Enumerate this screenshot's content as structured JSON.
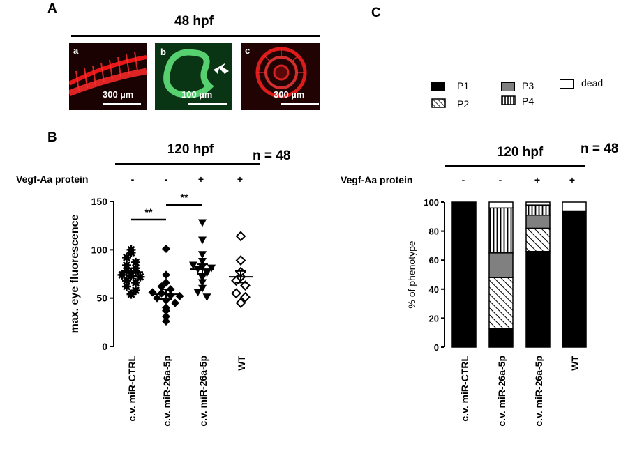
{
  "panel_a": {
    "letter": "A",
    "header": "48 hpf",
    "images": [
      {
        "label": "a",
        "scale": "300 µm",
        "description_icon": "zebrafish-trunk-vessels-image"
      },
      {
        "label": "b",
        "scale": "100 µm",
        "description_icon": "vessel-loop-image"
      },
      {
        "label": "c",
        "scale": "300 µm",
        "description_icon": "eye-vasculature-image"
      }
    ]
  },
  "panel_b": {
    "letter": "B",
    "header": "120 hpf",
    "n_label": "n = 48",
    "row_label": "Vegf-Aa protein",
    "signs": [
      "-",
      "-",
      "+",
      "+"
    ]
  },
  "panel_c": {
    "letter": "C",
    "header": "120 hpf",
    "n_label": "n = 48",
    "row_label": "Vegf-Aa protein",
    "signs": [
      "-",
      "-",
      "+",
      "+"
    ],
    "legend": [
      "P1",
      "P3",
      "dead",
      "P2",
      "P4"
    ]
  },
  "chart_data": [
    {
      "type": "scatter",
      "title": "",
      "ylabel": "max. eye fluorescence",
      "xlabel": "",
      "ylim": [
        0,
        150
      ],
      "yticks": [
        "0",
        "50",
        "100",
        "150"
      ],
      "categories": [
        "c.v. miR-CTRL",
        "c.v. miR-26a-5p",
        "c.v. miR-26a-5p",
        "WT"
      ],
      "series": [
        {
          "marker": "asterisk",
          "values": [
            100,
            97,
            92,
            87,
            84,
            81,
            78,
            78,
            74,
            73,
            72,
            68,
            66,
            62,
            58,
            54
          ]
        },
        {
          "marker": "diamond-filled",
          "values": [
            101,
            74,
            66,
            62,
            59,
            56,
            55,
            53,
            52,
            50,
            48,
            45,
            40,
            37,
            31,
            26
          ]
        },
        {
          "marker": "triangle-down",
          "values": [
            128,
            110,
            95,
            88,
            84,
            82,
            81,
            80,
            76,
            71,
            66,
            60,
            56,
            51
          ]
        },
        {
          "marker": "diamond-open",
          "values": [
            114,
            89,
            77,
            72,
            68,
            63,
            55,
            51,
            45
          ]
        }
      ],
      "means": [
        77,
        54,
        80,
        72
      ],
      "sem": [
        4,
        5,
        5,
        6
      ],
      "significance": [
        {
          "between": [
            0,
            1
          ],
          "label": "**"
        },
        {
          "between": [
            1,
            2
          ],
          "label": "**"
        }
      ]
    },
    {
      "type": "bar",
      "stacked": true,
      "title": "",
      "ylabel": "% of phenotype",
      "xlabel": "",
      "ylim": [
        0,
        100
      ],
      "yticks": [
        "0",
        "20",
        "40",
        "60",
        "80",
        "100"
      ],
      "categories": [
        "c.v. miR-CTRL",
        "c.v. miR-26a-5p",
        "c.v. miR-26a-5p",
        "WT"
      ],
      "series": [
        {
          "name": "P1",
          "fill": "black",
          "values": [
            100,
            13,
            66,
            94
          ]
        },
        {
          "name": "P2",
          "fill": "diagonal-hatch",
          "values": [
            0,
            35,
            16,
            0
          ]
        },
        {
          "name": "P3",
          "fill": "gray",
          "values": [
            0,
            17,
            9,
            0
          ]
        },
        {
          "name": "P4",
          "fill": "vertical-stripes",
          "values": [
            0,
            31,
            7,
            0
          ]
        },
        {
          "name": "dead",
          "fill": "white",
          "values": [
            0,
            4,
            2,
            6
          ]
        }
      ]
    }
  ]
}
